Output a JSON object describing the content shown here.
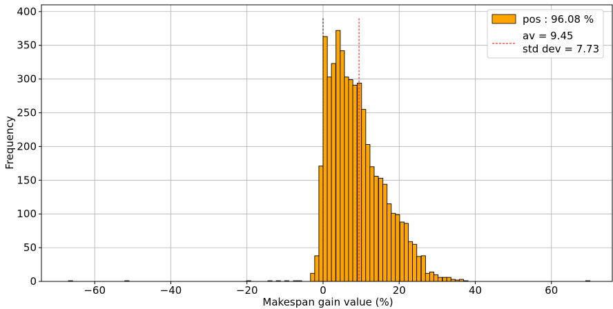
{
  "chart_data": {
    "type": "bar",
    "xlabel": "Makespan gain value (%)",
    "ylabel": "Frequency",
    "xlim": [
      -74,
      76
    ],
    "ylim": [
      0,
      410
    ],
    "xticks": [
      -60,
      -40,
      -20,
      0,
      20,
      40,
      60
    ],
    "xtick_labels": [
      "−60",
      "−40",
      "−20",
      "0",
      "20",
      "40",
      "60"
    ],
    "yticks": [
      0,
      50,
      100,
      150,
      200,
      250,
      300,
      350,
      400
    ],
    "ytick_labels": [
      "0",
      "50",
      "100",
      "150",
      "200",
      "250",
      "300",
      "350",
      "400"
    ],
    "grid": true,
    "legend_position": "top-right",
    "bar_color": "#ffa500",
    "bar_edge_color": "#000000",
    "bin_width": 1.12,
    "bins": [
      {
        "x": -66.9,
        "y": 1
      },
      {
        "x": -52.1,
        "y": 1
      },
      {
        "x": -20.1,
        "y": 1
      },
      {
        "x": -14.5,
        "y": 1
      },
      {
        "x": -12.3,
        "y": 1
      },
      {
        "x": -10.1,
        "y": 1
      },
      {
        "x": -7.8,
        "y": 1
      },
      {
        "x": -6.7,
        "y": 1
      },
      {
        "x": -3.3,
        "y": 12
      },
      {
        "x": -2.2,
        "y": 38
      },
      {
        "x": -1.1,
        "y": 171
      },
      {
        "x": 0.0,
        "y": 363
      },
      {
        "x": 1.1,
        "y": 303
      },
      {
        "x": 2.2,
        "y": 323
      },
      {
        "x": 3.4,
        "y": 372
      },
      {
        "x": 4.5,
        "y": 342
      },
      {
        "x": 5.6,
        "y": 303
      },
      {
        "x": 6.7,
        "y": 299
      },
      {
        "x": 7.8,
        "y": 291
      },
      {
        "x": 9.0,
        "y": 294
      },
      {
        "x": 10.1,
        "y": 255
      },
      {
        "x": 11.2,
        "y": 203
      },
      {
        "x": 12.3,
        "y": 170
      },
      {
        "x": 13.4,
        "y": 156
      },
      {
        "x": 14.6,
        "y": 153
      },
      {
        "x": 15.7,
        "y": 144
      },
      {
        "x": 16.8,
        "y": 115
      },
      {
        "x": 17.9,
        "y": 101
      },
      {
        "x": 19.0,
        "y": 99
      },
      {
        "x": 20.2,
        "y": 88
      },
      {
        "x": 21.3,
        "y": 86
      },
      {
        "x": 22.4,
        "y": 59
      },
      {
        "x": 23.5,
        "y": 55
      },
      {
        "x": 24.6,
        "y": 37
      },
      {
        "x": 25.8,
        "y": 38
      },
      {
        "x": 26.9,
        "y": 12
      },
      {
        "x": 28.0,
        "y": 14
      },
      {
        "x": 29.1,
        "y": 10
      },
      {
        "x": 30.2,
        "y": 6
      },
      {
        "x": 31.4,
        "y": 6
      },
      {
        "x": 32.5,
        "y": 6
      },
      {
        "x": 33.6,
        "y": 3
      },
      {
        "x": 34.7,
        "y": 2
      },
      {
        "x": 35.8,
        "y": 3
      },
      {
        "x": 37.0,
        "y": 1
      },
      {
        "x": 69.0,
        "y": 1
      }
    ],
    "reference_lines": [
      {
        "x": 0,
        "color": "#000000",
        "style": "dashed",
        "ymax": 390
      },
      {
        "x": 9.45,
        "color": "#ff0000",
        "style": "dashed",
        "ymax": 390
      }
    ],
    "legend": {
      "bar_entry": "pos : 96.08 %",
      "line_entry_1": "av = 9.45",
      "line_entry_2": "std dev = 7.73",
      "line_color": "#ff0000"
    }
  }
}
